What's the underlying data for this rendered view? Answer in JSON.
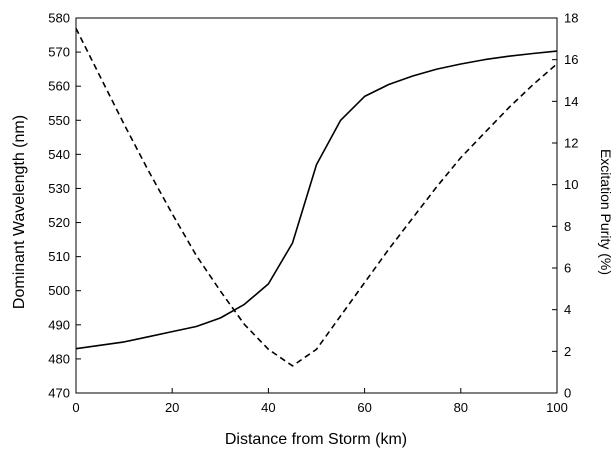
{
  "chart_data": {
    "type": "line",
    "title": "",
    "xlabel": "Distance from Storm (km)",
    "ylabel_left": "Dominant Wavelength (nm)",
    "ylabel_right": "Excitation Purity (%)",
    "x_range": [
      0,
      100
    ],
    "y_left_range": [
      470,
      580
    ],
    "y_right_range": [
      0,
      18
    ],
    "x_ticks": [
      0,
      20,
      40,
      60,
      80,
      100
    ],
    "y_left_ticks": [
      470,
      480,
      490,
      500,
      510,
      520,
      530,
      540,
      550,
      560,
      570,
      580
    ],
    "y_right_ticks": [
      0,
      2,
      4,
      6,
      8,
      10,
      12,
      14,
      16,
      18
    ],
    "grid": false,
    "legend": "none",
    "series": [
      {
        "axis": "left",
        "style": "solid",
        "color": "#000000",
        "x": [
          0,
          5,
          10,
          15,
          20,
          25,
          30,
          35,
          40,
          45,
          50,
          55,
          60,
          65,
          70,
          75,
          80,
          85,
          90,
          95,
          100
        ],
        "y": [
          483,
          484,
          485,
          486.5,
          488,
          489.5,
          492,
          496,
          502,
          514,
          537,
          550,
          557,
          560.5,
          563,
          565,
          566.5,
          567.8,
          568.8,
          569.6,
          570.3
        ]
      },
      {
        "axis": "right",
        "style": "dashed",
        "color": "#000000",
        "x": [
          0,
          5,
          10,
          15,
          20,
          25,
          30,
          35,
          40,
          45,
          50,
          55,
          60,
          65,
          70,
          75,
          80,
          85,
          90,
          95,
          100
        ],
        "y": [
          17.5,
          15.2,
          12.9,
          10.7,
          8.6,
          6.6,
          4.9,
          3.3,
          2.1,
          1.3,
          2.1,
          3.7,
          5.3,
          6.9,
          8.4,
          9.9,
          11.3,
          12.5,
          13.7,
          14.8,
          15.8
        ]
      }
    ]
  }
}
